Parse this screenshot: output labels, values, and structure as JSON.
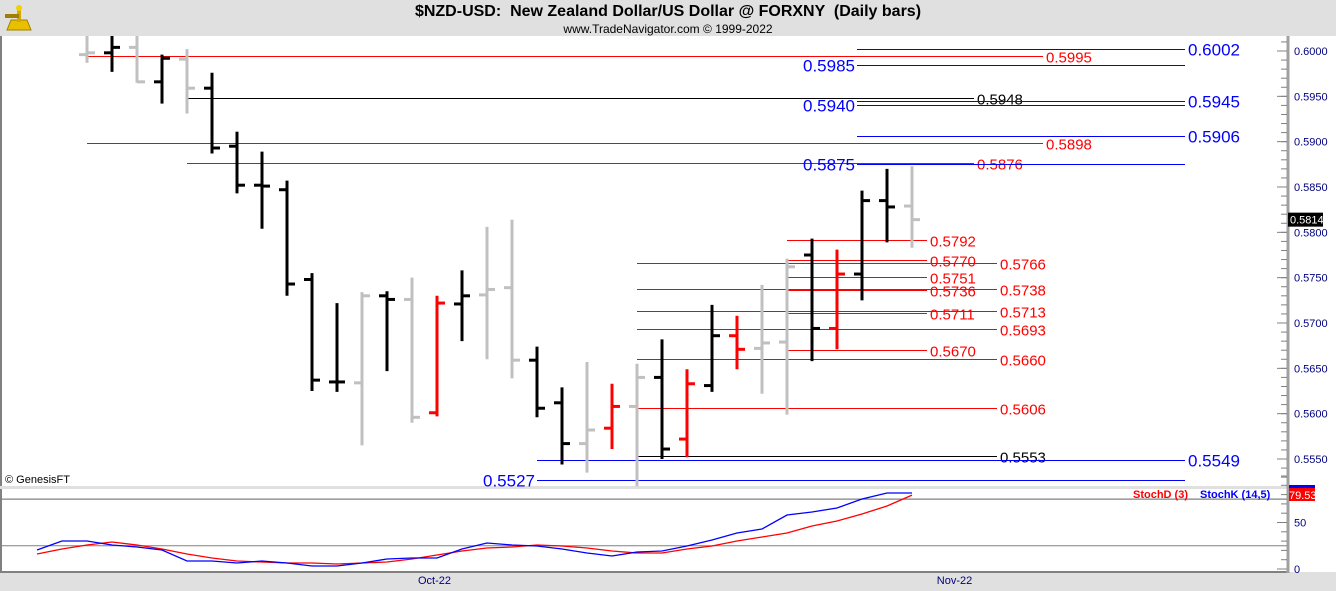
{
  "header": {
    "title": "$NZD-USD:  New Zealand Dollar/US Dollar @ FORXNY  (Daily bars)",
    "subtitle": "www.TradeNavigator.com © 1999-2022",
    "logo_icon": "sextant-icon"
  },
  "copyright": "© GenesisFT",
  "colors": {
    "up_bar": "#000000",
    "down_bar": "#c0c0c0",
    "signal_bar": "#ff0000",
    "stochK": "#0000ff",
    "stochD": "#ff0000",
    "axis_text": "#000080"
  },
  "chart_data": [
    {
      "type": "ohlc",
      "title": "$NZD-USD:  New Zealand Dollar/US Dollar @ FORXNY  (Daily bars)",
      "ylim": [
        0.552,
        0.6017
      ],
      "y_ticks": [
        "0.6000",
        "0.5950",
        "0.5900",
        "0.5850",
        "0.5800",
        "0.5750",
        "0.5700",
        "0.5650",
        "0.5600",
        "0.5550"
      ],
      "x_ticks": [
        {
          "label": "Oct-22",
          "bar": 13.9
        },
        {
          "label": "Nov-22",
          "bar": 34.7
        }
      ],
      "last_price": "0.5814",
      "bars": [
        {
          "o": 0.5996,
          "h": 0.6017,
          "l": 0.5987,
          "c": 0.5998,
          "color": "gray"
        },
        {
          "o": 0.5998,
          "h": 0.6017,
          "l": 0.5977,
          "c": 0.6004,
          "color": "black"
        },
        {
          "o": 0.6004,
          "h": 0.6017,
          "l": 0.5965,
          "c": 0.5966,
          "color": "gray"
        },
        {
          "o": 0.5966,
          "h": 0.5996,
          "l": 0.5942,
          "c": 0.5992,
          "color": "black"
        },
        {
          "o": 0.5991,
          "h": 0.6002,
          "l": 0.5931,
          "c": 0.5959,
          "color": "gray"
        },
        {
          "o": 0.5959,
          "h": 0.5976,
          "l": 0.5887,
          "c": 0.5893,
          "color": "black"
        },
        {
          "o": 0.5895,
          "h": 0.5911,
          "l": 0.5843,
          "c": 0.5852,
          "color": "black"
        },
        {
          "o": 0.5852,
          "h": 0.5889,
          "l": 0.5804,
          "c": 0.5851,
          "color": "black"
        },
        {
          "o": 0.5847,
          "h": 0.5857,
          "l": 0.573,
          "c": 0.5743,
          "color": "black"
        },
        {
          "o": 0.5748,
          "h": 0.5755,
          "l": 0.5625,
          "c": 0.5637,
          "color": "black"
        },
        {
          "o": 0.5635,
          "h": 0.5722,
          "l": 0.5624,
          "c": 0.5635,
          "color": "black"
        },
        {
          "o": 0.5634,
          "h": 0.5734,
          "l": 0.5565,
          "c": 0.573,
          "color": "gray"
        },
        {
          "o": 0.573,
          "h": 0.5735,
          "l": 0.5647,
          "c": 0.5726,
          "color": "black"
        },
        {
          "o": 0.5726,
          "h": 0.575,
          "l": 0.559,
          "c": 0.5596,
          "color": "gray"
        },
        {
          "o": 0.5601,
          "h": 0.573,
          "l": 0.5597,
          "c": 0.5722,
          "color": "red"
        },
        {
          "o": 0.5721,
          "h": 0.5758,
          "l": 0.568,
          "c": 0.573,
          "color": "black"
        },
        {
          "o": 0.5731,
          "h": 0.5806,
          "l": 0.566,
          "c": 0.5737,
          "color": "gray"
        },
        {
          "o": 0.5739,
          "h": 0.5814,
          "l": 0.5639,
          "c": 0.5659,
          "color": "gray"
        },
        {
          "o": 0.5659,
          "h": 0.5674,
          "l": 0.5596,
          "c": 0.5606,
          "color": "black"
        },
        {
          "o": 0.5612,
          "h": 0.5629,
          "l": 0.5544,
          "c": 0.5567,
          "color": "black"
        },
        {
          "o": 0.5567,
          "h": 0.5657,
          "l": 0.5535,
          "c": 0.5582,
          "color": "gray"
        },
        {
          "o": 0.5584,
          "h": 0.5633,
          "l": 0.5561,
          "c": 0.5608,
          "color": "red"
        },
        {
          "o": 0.5608,
          "h": 0.5655,
          "l": 0.552,
          "c": 0.564,
          "color": "gray"
        },
        {
          "o": 0.564,
          "h": 0.5682,
          "l": 0.555,
          "c": 0.5561,
          "color": "black"
        },
        {
          "o": 0.5572,
          "h": 0.5649,
          "l": 0.5552,
          "c": 0.5633,
          "color": "red"
        },
        {
          "o": 0.5631,
          "h": 0.572,
          "l": 0.5624,
          "c": 0.5686,
          "color": "black"
        },
        {
          "o": 0.5686,
          "h": 0.5708,
          "l": 0.5649,
          "c": 0.5671,
          "color": "red"
        },
        {
          "o": 0.5672,
          "h": 0.5742,
          "l": 0.5622,
          "c": 0.5678,
          "color": "gray"
        },
        {
          "o": 0.5679,
          "h": 0.5771,
          "l": 0.5599,
          "c": 0.5762,
          "color": "gray"
        },
        {
          "o": 0.5775,
          "h": 0.5793,
          "l": 0.5658,
          "c": 0.5694,
          "color": "black"
        },
        {
          "o": 0.5694,
          "h": 0.5781,
          "l": 0.5671,
          "c": 0.5754,
          "color": "red"
        },
        {
          "o": 0.5754,
          "h": 0.5846,
          "l": 0.5725,
          "c": 0.5835,
          "color": "black"
        },
        {
          "o": 0.5835,
          "h": 0.587,
          "l": 0.5789,
          "c": 0.5828,
          "color": "black"
        },
        {
          "o": 0.5829,
          "h": 0.5873,
          "l": 0.5783,
          "c": 0.5814,
          "color": "gray"
        }
      ],
      "levels": [
        {
          "price": 0.6002,
          "label": "0.6002",
          "color": "#0000ff",
          "tool": "C",
          "side": "right"
        },
        {
          "price": 0.5995,
          "label": "0.5995",
          "color": "#ff0000",
          "tool": "A",
          "side": "right"
        },
        {
          "price": 0.5985,
          "label": "0.5985",
          "color": "#0000ff",
          "tool": "C",
          "side": "left"
        },
        {
          "price": 0.5948,
          "label": "0.5948",
          "color": "#000000",
          "tool": "B",
          "side": "right"
        },
        {
          "price": 0.5945,
          "label": "0.5945",
          "color": "#0000ff",
          "tool": "C",
          "side": "right"
        },
        {
          "price": 0.594,
          "label": "0.5940",
          "color": "#0000ff",
          "tool": "C",
          "side": "left"
        },
        {
          "price": 0.5906,
          "label": "0.5906",
          "color": "#0000ff",
          "tool": "C",
          "side": "right"
        },
        {
          "price": 0.5898,
          "label": "0.5898",
          "color": "#ff0000",
          "tool": "A",
          "side": "right"
        },
        {
          "price": 0.5876,
          "label": "0.5876",
          "color": "#ff0000",
          "tool": "B",
          "side": "right"
        },
        {
          "price": 0.5875,
          "label": "0.5875",
          "color": "#0000ff",
          "tool": "C",
          "side": "left"
        },
        {
          "price": 0.5792,
          "label": "0.5792",
          "color": "#ff0000",
          "tool": "D",
          "side": "right"
        },
        {
          "price": 0.577,
          "label": "0.5770",
          "color": "#ff0000",
          "tool": "D",
          "side": "right"
        },
        {
          "price": 0.5766,
          "label": "0.5766",
          "color": "#ff0000",
          "tool": "E",
          "side": "right"
        },
        {
          "price": 0.5751,
          "label": "0.5751",
          "color": "#ff0000",
          "tool": "D",
          "side": "right"
        },
        {
          "price": 0.5738,
          "label": "0.5738",
          "color": "#ff0000",
          "tool": "E",
          "side": "right"
        },
        {
          "price": 0.5736,
          "label": "0.5736",
          "color": "#ff0000",
          "tool": "D",
          "side": "right"
        },
        {
          "price": 0.5713,
          "label": "0.5713",
          "color": "#ff0000",
          "tool": "E",
          "side": "right"
        },
        {
          "price": 0.5711,
          "label": "0.5711",
          "color": "#ff0000",
          "tool": "D",
          "side": "right"
        },
        {
          "price": 0.5693,
          "label": "0.5693",
          "color": "#ff0000",
          "tool": "E",
          "side": "right"
        },
        {
          "price": 0.567,
          "label": "0.5670",
          "color": "#ff0000",
          "tool": "D",
          "side": "right"
        },
        {
          "price": 0.566,
          "label": "0.5660",
          "color": "#ff0000",
          "tool": "E",
          "side": "right"
        },
        {
          "price": 0.5606,
          "label": "0.5606",
          "color": "#ff0000",
          "tool": "E",
          "side": "right"
        },
        {
          "price": 0.5553,
          "label": "0.5553",
          "color": "#000000",
          "tool": "E",
          "side": "right"
        },
        {
          "price": 0.5549,
          "label": "0.5549",
          "color": "#0000ff",
          "tool": "F",
          "side": "right"
        },
        {
          "price": 0.5527,
          "label": "0.5527",
          "color": "#0000ff",
          "tool": "F",
          "side": "left"
        }
      ]
    },
    {
      "type": "line",
      "ylim": [
        0,
        100
      ],
      "y_ticks": [
        "50",
        "0"
      ],
      "guide_lines": [
        25,
        75
      ],
      "series": [
        {
          "name": "StochD (3)",
          "color": "#ff0000",
          "last_value": "79.53",
          "values": [
            16.1,
            21.5,
            25.8,
            29.0,
            25.8,
            21.5,
            16.1,
            11.8,
            8.6,
            7.5,
            6.5,
            6.5,
            5.4,
            6.5,
            7.5,
            10.8,
            15.1,
            19.4,
            22.6,
            23.7,
            25.8,
            24.7,
            22.6,
            19.4,
            17.2,
            17.2,
            21.5,
            24.7,
            30.1,
            34.4,
            38.7,
            46.2,
            51.6,
            59.1,
            67.7,
            79.5
          ]
        },
        {
          "name": "StochK (14,5)",
          "color": "#0000ff",
          "values": [
            20.4,
            30.1,
            30.1,
            25.8,
            23.7,
            20.4,
            8.6,
            8.6,
            6.5,
            8.6,
            6.5,
            3.2,
            3.2,
            6.5,
            10.8,
            11.8,
            11.8,
            21.5,
            28.0,
            25.8,
            24.7,
            21.5,
            17.2,
            14.0,
            18.3,
            19.4,
            24.7,
            31.2,
            38.7,
            43.0,
            58.1,
            61.3,
            65.6,
            75.3,
            81.7,
            81.7
          ]
        }
      ]
    }
  ]
}
